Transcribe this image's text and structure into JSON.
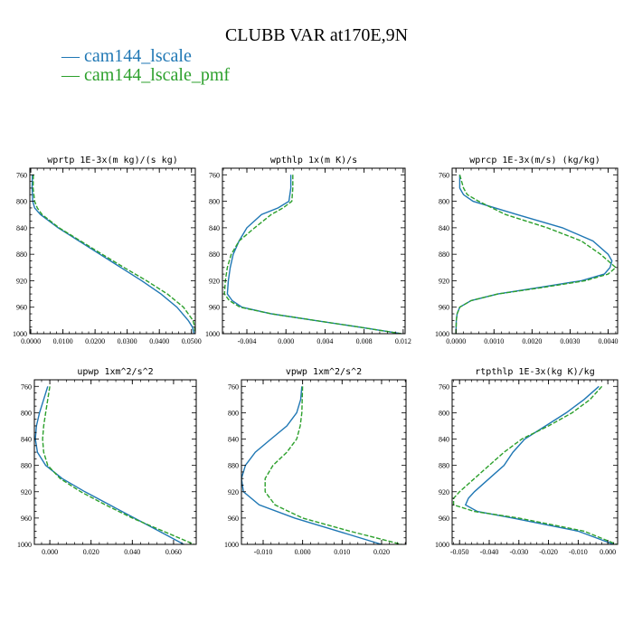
{
  "title": "CLUBB VAR at170E,9N",
  "legend": [
    {
      "name": "cam144_lscale",
      "color": "#1f77b4",
      "dash": "solid"
    },
    {
      "name": "cam144_lscale_pmf",
      "color": "#2ca02c",
      "dash": "dashed"
    }
  ],
  "chart_data": [
    {
      "type": "line",
      "title": "wprtp  1E-3x(m kg)/(s kg)",
      "xlim": [
        -0.0003,
        0.0512
      ],
      "ylim": [
        1000,
        750
      ],
      "yticks": [
        "760",
        "800",
        "840",
        "880",
        "920",
        "960",
        "1000"
      ],
      "yticks_values": [
        760,
        800,
        840,
        880,
        920,
        960,
        1000
      ],
      "xticks": [
        "0.0000",
        "0.0100",
        "0.0200",
        "0.0300",
        "0.0400",
        "0.0500"
      ],
      "xticks_values": [
        0,
        0.01,
        0.02,
        0.03,
        0.04,
        0.05
      ],
      "series": [
        {
          "name": "cam144_lscale",
          "y": [
            760,
            780,
            800,
            810,
            820,
            840,
            860,
            880,
            900,
            920,
            940,
            960,
            980,
            990,
            1000
          ],
          "x": [
            0.0005,
            0.0004,
            0.0006,
            0.0012,
            0.003,
            0.0085,
            0.015,
            0.0215,
            0.028,
            0.0345,
            0.0405,
            0.0455,
            0.049,
            0.0503,
            0.0508
          ]
        },
        {
          "name": "cam144_lscale_pmf",
          "y": [
            760,
            780,
            800,
            810,
            820,
            840,
            860,
            880,
            900,
            920,
            940,
            960,
            980,
            990,
            1000
          ],
          "x": [
            0.0008,
            0.0007,
            0.0012,
            0.002,
            0.0035,
            0.0088,
            0.0155,
            0.0222,
            0.029,
            0.036,
            0.0425,
            0.0475,
            0.0505,
            0.051,
            0.0511
          ]
        }
      ]
    },
    {
      "type": "line",
      "title": "wpthlp  1x(m K)/s",
      "xlim": [
        -0.0065,
        0.0122
      ],
      "ylim": [
        1000,
        750
      ],
      "yticks": [
        "760",
        "800",
        "840",
        "880",
        "920",
        "960",
        "1000"
      ],
      "yticks_values": [
        760,
        800,
        840,
        880,
        920,
        960,
        1000
      ],
      "xticks": [
        "-0.004",
        "0.000",
        "0.004",
        "0.008",
        "0.012"
      ],
      "xticks_values": [
        -0.004,
        0,
        0.004,
        0.008,
        0.012
      ],
      "series": [
        {
          "name": "cam144_lscale",
          "y": [
            760,
            780,
            800,
            810,
            820,
            840,
            860,
            880,
            900,
            920,
            940,
            950,
            960,
            970,
            980,
            990,
            1000
          ],
          "x": [
            0.0005,
            0.0005,
            0.0003,
            -0.0008,
            -0.0025,
            -0.004,
            -0.0048,
            -0.0054,
            -0.0057,
            -0.0059,
            -0.006,
            -0.0055,
            -0.0045,
            -0.0015,
            0.003,
            0.0075,
            0.0118
          ]
        },
        {
          "name": "cam144_lscale_pmf",
          "y": [
            760,
            780,
            800,
            810,
            820,
            840,
            860,
            880,
            900,
            920,
            940,
            950,
            960,
            970,
            980,
            990,
            1000
          ],
          "x": [
            0.0007,
            0.0007,
            0.0006,
            -0.0003,
            -0.0015,
            -0.0032,
            -0.0048,
            -0.0056,
            -0.006,
            -0.0062,
            -0.0063,
            -0.0058,
            -0.0047,
            -0.0015,
            0.003,
            0.0075,
            0.0118
          ]
        }
      ]
    },
    {
      "type": "line",
      "title": "wprcp  1E-3x(m/s) (kg/kg)",
      "xlim": [
        -0.0001,
        0.00425
      ],
      "ylim": [
        1000,
        750
      ],
      "yticks": [
        "760",
        "800",
        "840",
        "880",
        "920",
        "960",
        "1000"
      ],
      "yticks_values": [
        760,
        800,
        840,
        880,
        920,
        960,
        1000
      ],
      "xticks": [
        "0.0000",
        "0.0010",
        "0.0020",
        "0.0030",
        "0.0040"
      ],
      "xticks_values": [
        0,
        0.001,
        0.002,
        0.003,
        0.004
      ],
      "series": [
        {
          "name": "cam144_lscale",
          "y": [
            760,
            780,
            790,
            800,
            820,
            840,
            860,
            880,
            890,
            900,
            910,
            920,
            930,
            940,
            950,
            960,
            970,
            980,
            1000
          ],
          "x": [
            0.0001,
            0.0001,
            0.0002,
            0.00045,
            0.0016,
            0.0028,
            0.0036,
            0.004,
            0.0041,
            0.00405,
            0.0039,
            0.0033,
            0.0022,
            0.0011,
            0.0004,
            0.0001,
            3e-05,
            1e-05,
            0
          ]
        },
        {
          "name": "cam144_lscale_pmf",
          "y": [
            760,
            780,
            790,
            800,
            820,
            840,
            860,
            880,
            890,
            900,
            910,
            920,
            930,
            940,
            950,
            960,
            970,
            980,
            1000
          ],
          "x": [
            0.0001,
            0.0002,
            0.0003,
            0.0006,
            0.0013,
            0.0024,
            0.0033,
            0.0038,
            0.004,
            0.0042,
            0.004,
            0.0034,
            0.0023,
            0.0011,
            0.0004,
            0.0001,
            3e-05,
            1e-05,
            0
          ]
        }
      ]
    },
    {
      "type": "line",
      "title": "upwp  1xm^2/s^2",
      "xlim": [
        -0.0075,
        0.071
      ],
      "ylim": [
        1000,
        750
      ],
      "yticks": [
        "760",
        "800",
        "840",
        "880",
        "920",
        "960",
        "1000"
      ],
      "yticks_values": [
        760,
        800,
        840,
        880,
        920,
        960,
        1000
      ],
      "xticks": [
        "0.000",
        "0.020",
        "0.040",
        "0.060"
      ],
      "xticks_values": [
        0,
        0.02,
        0.04,
        0.06
      ],
      "series": [
        {
          "name": "cam144_lscale",
          "y": [
            760,
            780,
            800,
            820,
            840,
            860,
            880,
            900,
            920,
            940,
            960,
            980,
            1000
          ],
          "x": [
            -0.001,
            -0.003,
            -0.005,
            -0.0065,
            -0.007,
            -0.006,
            -0.002,
            0.006,
            0.017,
            0.029,
            0.041,
            0.053,
            0.065
          ]
        },
        {
          "name": "cam144_lscale_pmf",
          "y": [
            760,
            780,
            800,
            820,
            840,
            860,
            880,
            900,
            920,
            940,
            960,
            980,
            1000
          ],
          "x": [
            0.0,
            -0.001,
            -0.002,
            -0.003,
            -0.0035,
            -0.003,
            -0.001,
            0.005,
            0.015,
            0.027,
            0.04,
            0.055,
            0.07
          ]
        }
      ]
    },
    {
      "type": "line",
      "title": "vpwp  1xm^2/s^2",
      "xlim": [
        -0.0155,
        0.0262
      ],
      "ylim": [
        1000,
        750
      ],
      "yticks": [
        "760",
        "800",
        "840",
        "880",
        "920",
        "960",
        "1000"
      ],
      "yticks_values": [
        760,
        800,
        840,
        880,
        920,
        960,
        1000
      ],
      "xticks": [
        "-0.010",
        "0.000",
        "0.010",
        "0.020"
      ],
      "xticks_values": [
        -0.01,
        0,
        0.01,
        0.02
      ],
      "series": [
        {
          "name": "cam144_lscale",
          "y": [
            760,
            780,
            800,
            820,
            840,
            860,
            880,
            900,
            920,
            940,
            960,
            980,
            1000
          ],
          "x": [
            -0.0002,
            -0.0005,
            -0.0015,
            -0.004,
            -0.008,
            -0.012,
            -0.0145,
            -0.0155,
            -0.015,
            -0.011,
            -0.002,
            0.009,
            0.02
          ]
        },
        {
          "name": "cam144_lscale_pmf",
          "y": [
            760,
            780,
            800,
            820,
            840,
            860,
            880,
            900,
            920,
            940,
            960,
            980,
            1000
          ],
          "x": [
            0.0,
            -0.0001,
            -0.0002,
            -0.0006,
            -0.0015,
            -0.004,
            -0.0075,
            -0.0095,
            -0.0095,
            -0.007,
            0.0,
            0.012,
            0.025
          ]
        }
      ]
    },
    {
      "type": "line",
      "title": "rtpthlp  1E-3x(kg K)/kg",
      "xlim": [
        -0.0525,
        0.0033
      ],
      "ylim": [
        1000,
        750
      ],
      "yticks": [
        "760",
        "800",
        "840",
        "880",
        "920",
        "960",
        "1000"
      ],
      "yticks_values": [
        760,
        800,
        840,
        880,
        920,
        960,
        1000
      ],
      "xticks": [
        "-0.050",
        "-0.040",
        "-0.030",
        "-0.020",
        "-0.010",
        "0.000"
      ],
      "xticks_values": [
        -0.05,
        -0.04,
        -0.03,
        -0.02,
        -0.01,
        0
      ],
      "series": [
        {
          "name": "cam144_lscale",
          "y": [
            760,
            780,
            800,
            820,
            840,
            860,
            880,
            900,
            920,
            930,
            940,
            950,
            960,
            980,
            1000
          ],
          "x": [
            -0.003,
            -0.008,
            -0.014,
            -0.021,
            -0.028,
            -0.032,
            -0.035,
            -0.04,
            -0.045,
            -0.047,
            -0.048,
            -0.044,
            -0.032,
            -0.01,
            0.002
          ]
        },
        {
          "name": "cam144_lscale_pmf",
          "y": [
            760,
            780,
            800,
            820,
            840,
            860,
            880,
            900,
            920,
            930,
            940,
            950,
            960,
            980,
            1000
          ],
          "x": [
            -0.002,
            -0.006,
            -0.012,
            -0.02,
            -0.029,
            -0.035,
            -0.04,
            -0.045,
            -0.05,
            -0.052,
            -0.052,
            -0.045,
            -0.03,
            -0.008,
            0.003
          ]
        }
      ]
    }
  ]
}
